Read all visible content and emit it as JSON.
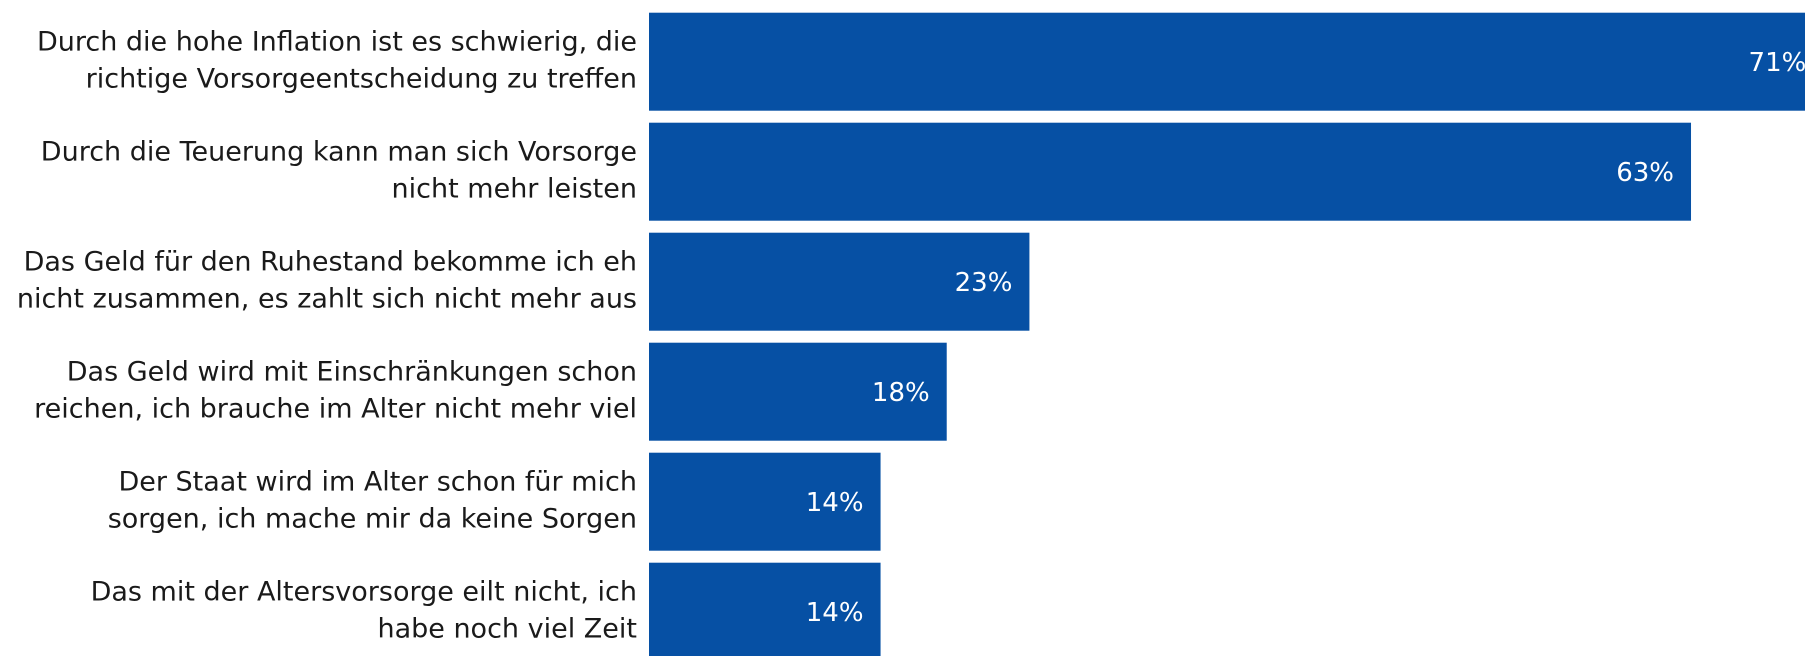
{
  "chart_data": {
    "type": "bar",
    "orientation": "horizontal",
    "categories": [
      [
        "Durch die hohe Inflation ist es schwierig, die",
        "richtige Vorsorgeentscheidung zu treffen"
      ],
      [
        "Durch die Teuerung kann man sich Vorsorge",
        "nicht mehr leisten"
      ],
      [
        "Das Geld für den Ruhestand bekomme ich eh",
        "nicht zusammen, es zahlt sich nicht mehr aus"
      ],
      [
        "Das Geld wird mit Einschränkungen schon",
        "reichen, ich brauche im Alter nicht mehr viel"
      ],
      [
        "Der Staat wird im Alter schon für mich",
        "sorgen, ich mache mir da keine Sorgen"
      ],
      [
        "Das mit der Altersvorsorge eilt nicht, ich",
        "habe noch viel Zeit"
      ]
    ],
    "values": [
      71,
      63,
      23,
      18,
      14,
      14
    ],
    "value_labels": [
      "71%",
      "63%",
      "23%",
      "18%",
      "14%",
      "14%"
    ],
    "color": "#0650a4"
  }
}
